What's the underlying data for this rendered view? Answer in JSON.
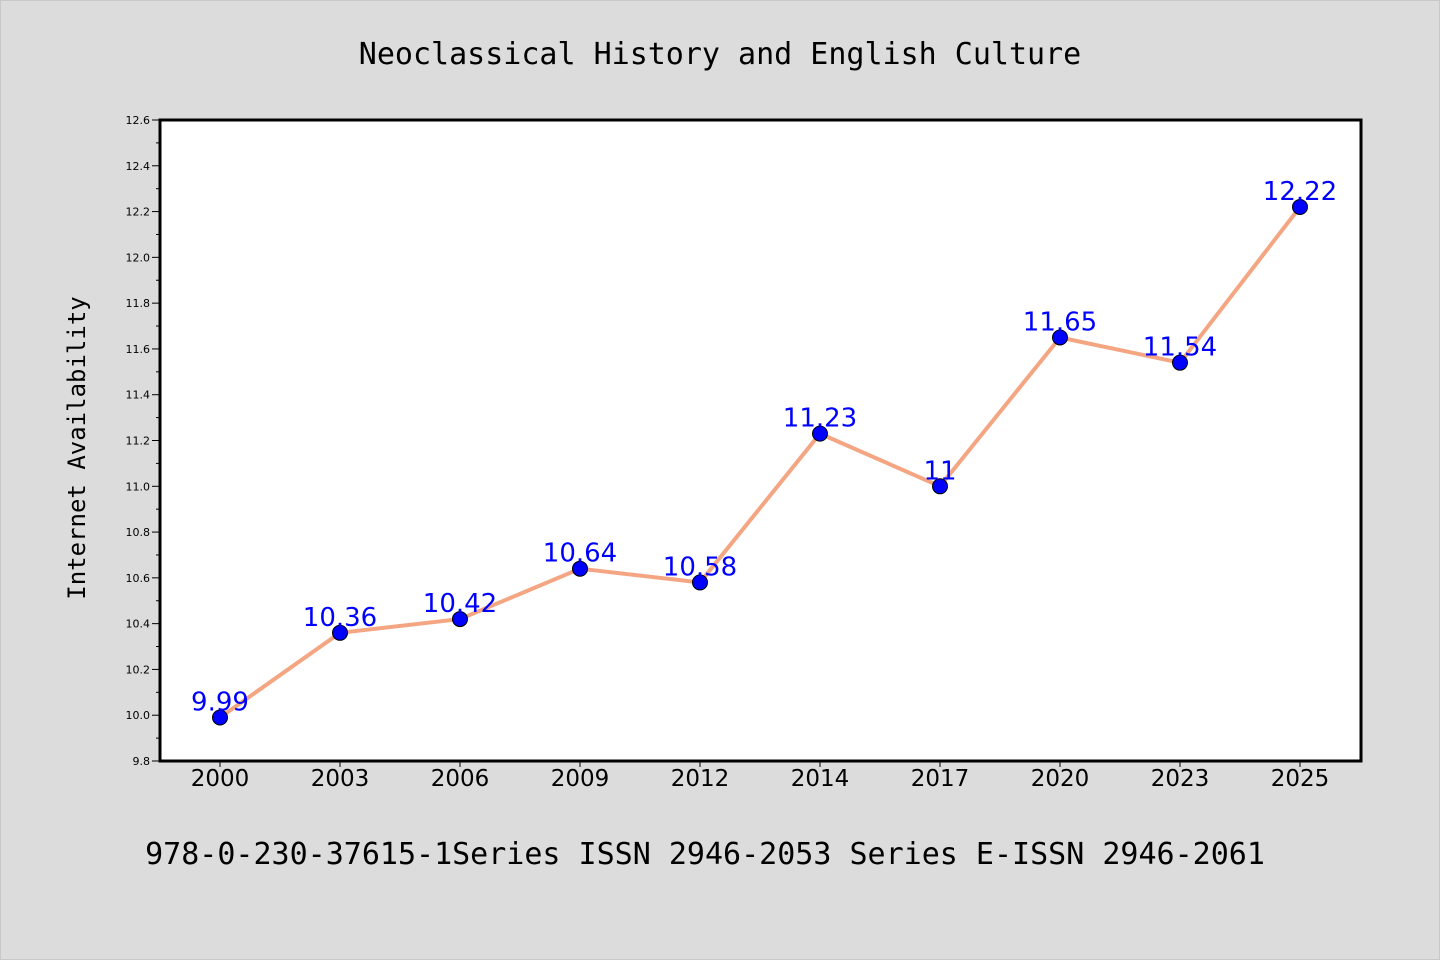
{
  "chart_data": {
    "type": "line",
    "title": "Neoclassical History and English Culture",
    "xlabel": "",
    "ylabel": "Internet Availability",
    "categories": [
      "2000",
      "2003",
      "2006",
      "2009",
      "2012",
      "2014",
      "2017",
      "2020",
      "2023",
      "2025"
    ],
    "values": [
      9.99,
      10.36,
      10.42,
      10.64,
      10.58,
      11.23,
      11,
      11.65,
      11.54,
      12.22
    ],
    "data_labels": [
      "9.99",
      "10.36",
      "10.42",
      "10.64",
      "10.58",
      "11.23",
      "11",
      "11.65",
      "11.54",
      "12.22"
    ],
    "ylim": [
      9.8,
      12.6
    ],
    "yticks": [
      9.8,
      10.0,
      10.2,
      10.4,
      10.6,
      10.8,
      11.0,
      11.2,
      11.4,
      11.6,
      11.8,
      12.0,
      12.2,
      12.4,
      12.6
    ],
    "ytick_labels": [
      "9.8",
      "10.0",
      "10.2",
      "10.4",
      "10.6",
      "10.8",
      "11.0",
      "11.2",
      "11.4",
      "11.6",
      "11.8",
      "12.0",
      "12.2",
      "12.4",
      "12.6"
    ],
    "grid": false,
    "line_color": "#f4a582",
    "marker_color": "#0000ff",
    "label_color": "#0000ff"
  },
  "footer": "978-0-230-37615-1Series ISSN 2946-2053 Series E-ISSN 2946-2061",
  "colors": {
    "background": "#dcdcdc",
    "plot_background": "#ffffff"
  }
}
